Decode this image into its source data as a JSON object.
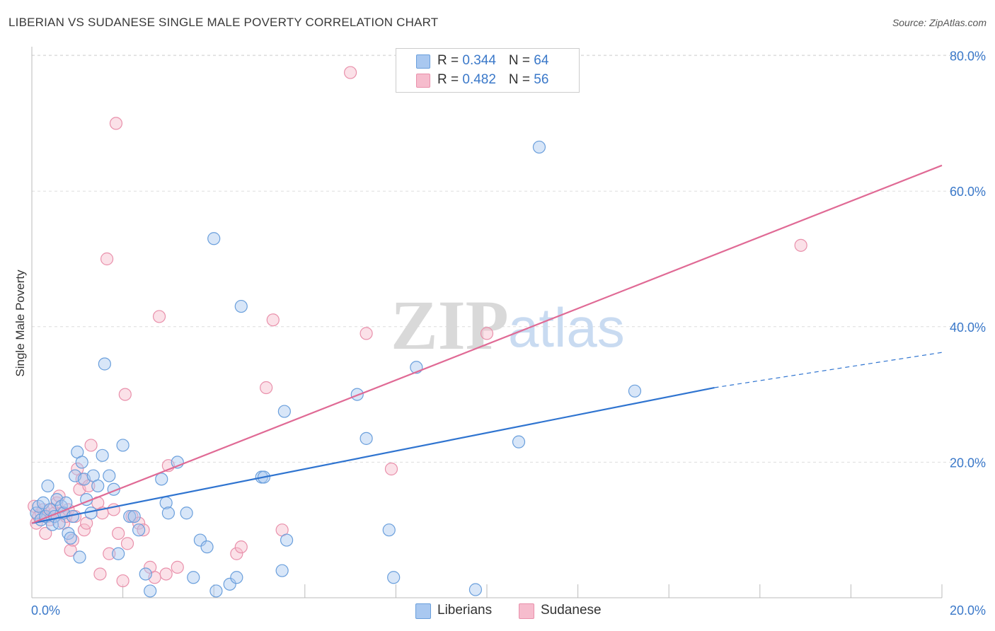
{
  "header": {
    "title": "LIBERIAN VS SUDANESE SINGLE MALE POVERTY CORRELATION CHART",
    "source": "Source: ZipAtlas.com"
  },
  "legend": {
    "liberians": {
      "r_label": "R = ",
      "r_value": "0.344",
      "n_label": "N = ",
      "n_value": "64"
    },
    "sudanese": {
      "r_label": "R = ",
      "r_value": "0.482",
      "n_label": "N = ",
      "n_value": "56"
    }
  },
  "bottom_legend": {
    "liberians": "Liberians",
    "sudanese": "Sudanese"
  },
  "watermark": {
    "zip": "ZIP",
    "atlas": "atlas"
  },
  "colors": {
    "liberians_fill": "#a9c8f0",
    "liberians_stroke": "#6a9fdc",
    "liberians_line": "#2f74d0",
    "sudanese_fill": "#f6bccd",
    "sudanese_stroke": "#e990ab",
    "sudanese_line": "#e06a95",
    "grid": "#dddddd",
    "axis_text": "#3a78c9"
  },
  "chart_data": {
    "type": "scatter",
    "title": "LIBERIAN VS SUDANESE SINGLE MALE POVERTY CORRELATION CHART",
    "xlabel": "",
    "ylabel": "Single Male Poverty",
    "xlim": [
      0,
      20
    ],
    "ylim": [
      0,
      80
    ],
    "x_tick_labels": [
      "0.0%",
      "20.0%"
    ],
    "y_tick_labels": [
      "20.0%",
      "40.0%",
      "60.0%",
      "80.0%"
    ],
    "y_ticks": [
      20,
      40,
      60,
      80
    ],
    "grid": true,
    "series": [
      {
        "name": "Liberians",
        "R": 0.344,
        "N": 64,
        "trend": {
          "x0": 0,
          "y0": 11.0,
          "x1": 15.0,
          "y1": 31.0,
          "dash_to_x": 20.0,
          "dash_to_y": 36.2
        },
        "points": [
          [
            0.1,
            12.5
          ],
          [
            0.15,
            13.5
          ],
          [
            0.2,
            11.5
          ],
          [
            0.25,
            14.0
          ],
          [
            0.3,
            12.0
          ],
          [
            0.35,
            16.5
          ],
          [
            0.4,
            13.0
          ],
          [
            0.45,
            10.8
          ],
          [
            0.5,
            12.0
          ],
          [
            0.55,
            14.5
          ],
          [
            0.6,
            11.0
          ],
          [
            0.65,
            13.5
          ],
          [
            0.7,
            12.5
          ],
          [
            0.75,
            14.0
          ],
          [
            0.8,
            9.5
          ],
          [
            0.85,
            8.8
          ],
          [
            0.9,
            12.0
          ],
          [
            0.95,
            18.0
          ],
          [
            1.0,
            21.5
          ],
          [
            1.05,
            6.0
          ],
          [
            1.1,
            20.0
          ],
          [
            1.15,
            17.5
          ],
          [
            1.2,
            14.5
          ],
          [
            1.3,
            12.5
          ],
          [
            1.35,
            18.0
          ],
          [
            1.45,
            16.5
          ],
          [
            1.55,
            21.0
          ],
          [
            1.6,
            34.5
          ],
          [
            1.7,
            18.0
          ],
          [
            1.8,
            16.0
          ],
          [
            1.9,
            6.5
          ],
          [
            2.0,
            22.5
          ],
          [
            2.15,
            12.0
          ],
          [
            2.25,
            12.0
          ],
          [
            2.35,
            10.0
          ],
          [
            2.5,
            3.5
          ],
          [
            2.6,
            1.0
          ],
          [
            2.85,
            17.5
          ],
          [
            2.95,
            14.0
          ],
          [
            3.0,
            12.5
          ],
          [
            3.2,
            20.0
          ],
          [
            3.4,
            12.5
          ],
          [
            3.55,
            3.0
          ],
          [
            3.7,
            8.5
          ],
          [
            3.85,
            7.5
          ],
          [
            4.0,
            53.0
          ],
          [
            4.05,
            1.0
          ],
          [
            4.35,
            2.0
          ],
          [
            4.5,
            3.0
          ],
          [
            4.6,
            43.0
          ],
          [
            5.05,
            17.8
          ],
          [
            5.1,
            17.8
          ],
          [
            5.5,
            4.0
          ],
          [
            5.55,
            27.5
          ],
          [
            5.6,
            8.5
          ],
          [
            7.15,
            30.0
          ],
          [
            7.35,
            23.5
          ],
          [
            7.85,
            10.0
          ],
          [
            7.95,
            3.0
          ],
          [
            8.45,
            34.0
          ],
          [
            9.75,
            1.2
          ],
          [
            10.7,
            23.0
          ],
          [
            11.15,
            66.5
          ],
          [
            13.25,
            30.5
          ]
        ]
      },
      {
        "name": "Sudanese",
        "R": 0.482,
        "N": 56,
        "trend": {
          "x0": 0,
          "y0": 11.0,
          "x1": 20.0,
          "y1": 63.8
        },
        "points": [
          [
            0.05,
            13.5
          ],
          [
            0.1,
            11.0
          ],
          [
            0.15,
            12.0
          ],
          [
            0.2,
            12.5
          ],
          [
            0.25,
            13.0
          ],
          [
            0.3,
            9.5
          ],
          [
            0.35,
            12.0
          ],
          [
            0.4,
            11.5
          ],
          [
            0.45,
            13.0
          ],
          [
            0.5,
            12.5
          ],
          [
            0.55,
            14.0
          ],
          [
            0.6,
            15.0
          ],
          [
            0.65,
            12.5
          ],
          [
            0.7,
            11.0
          ],
          [
            0.75,
            12.0
          ],
          [
            0.8,
            13.0
          ],
          [
            0.85,
            7.0
          ],
          [
            0.9,
            8.5
          ],
          [
            0.95,
            12.0
          ],
          [
            1.0,
            19.0
          ],
          [
            1.05,
            16.0
          ],
          [
            1.1,
            17.5
          ],
          [
            1.15,
            10.0
          ],
          [
            1.2,
            11.0
          ],
          [
            1.25,
            16.5
          ],
          [
            1.3,
            22.5
          ],
          [
            1.45,
            14.0
          ],
          [
            1.5,
            3.5
          ],
          [
            1.55,
            12.5
          ],
          [
            1.65,
            50.0
          ],
          [
            1.7,
            6.5
          ],
          [
            1.8,
            13.0
          ],
          [
            1.85,
            70.0
          ],
          [
            1.9,
            9.5
          ],
          [
            2.0,
            2.5
          ],
          [
            2.05,
            30.0
          ],
          [
            2.1,
            8.0
          ],
          [
            2.2,
            12.0
          ],
          [
            2.35,
            11.0
          ],
          [
            2.45,
            10.0
          ],
          [
            2.6,
            4.5
          ],
          [
            2.7,
            3.0
          ],
          [
            2.8,
            41.5
          ],
          [
            2.95,
            3.5
          ],
          [
            3.0,
            19.5
          ],
          [
            3.2,
            4.5
          ],
          [
            4.5,
            6.5
          ],
          [
            4.6,
            7.5
          ],
          [
            5.15,
            31.0
          ],
          [
            5.3,
            41.0
          ],
          [
            5.5,
            10.0
          ],
          [
            7.0,
            77.5
          ],
          [
            7.35,
            39.0
          ],
          [
            7.9,
            19.0
          ],
          [
            10.0,
            39.0
          ],
          [
            16.9,
            52.0
          ]
        ]
      }
    ]
  }
}
